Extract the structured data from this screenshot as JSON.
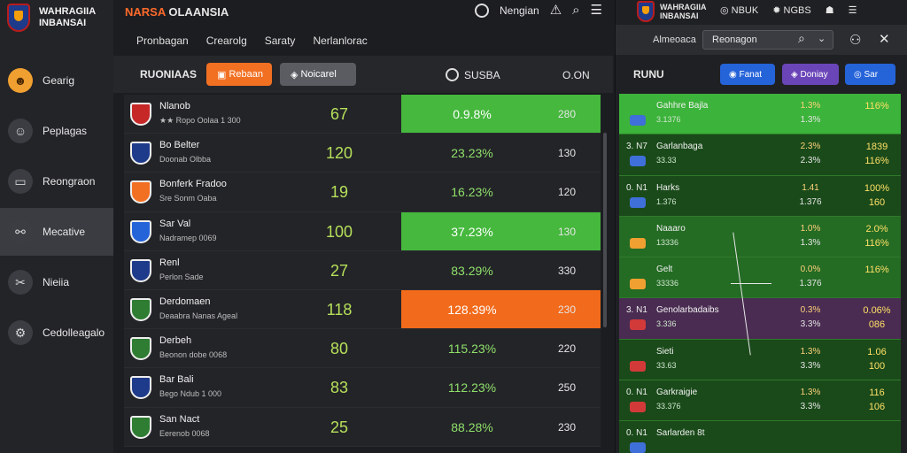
{
  "sidebar": {
    "logo_line1": "WAHRAGIIA",
    "logo_line2": "INBANSAI",
    "items": [
      {
        "label": "Gearig",
        "icon": "user-icon",
        "glyph": "☻"
      },
      {
        "label": "Peplagas",
        "icon": "people-icon",
        "glyph": "☺"
      },
      {
        "label": "Reongraon",
        "icon": "window-icon",
        "glyph": "▭"
      },
      {
        "label": "Mecative",
        "icon": "share-icon",
        "glyph": "⚯"
      },
      {
        "label": "Nieiia",
        "icon": "tools-icon",
        "glyph": "✂"
      },
      {
        "label": "Cedolleagalo",
        "icon": "settings-icon",
        "glyph": "⚙"
      }
    ]
  },
  "header": {
    "brand": "NARSA",
    "title": "OLAANSIA",
    "user_label": "Nengian"
  },
  "subnav": [
    "Pronbagan",
    "Crearolg",
    "Saraty",
    "Nerlanlorac"
  ],
  "table": {
    "title": "RUONIAAS",
    "filter_orange": "Rebaan",
    "filter_grey": "Noicarel",
    "score_col": "SUSBA",
    "right_col": "O.ON",
    "rows": [
      {
        "name": "Nlanob",
        "sub": "★★ Ropo Oolaa 1 300",
        "value": "67",
        "pct": "0.9.8%",
        "right": "280",
        "hl": "green",
        "badge": "#c62828"
      },
      {
        "name": "Bo Belter",
        "sub": "Doonab Olbba",
        "value": "120",
        "pct": "23.23%",
        "right": "130",
        "hl": "",
        "badge": "#1e3a8a"
      },
      {
        "name": "Bonferk Fradoo",
        "sub": "Sre Sonm Oaba",
        "value": "19",
        "pct": "16.23%",
        "right": "120",
        "hl": "",
        "badge": "#f27022"
      },
      {
        "name": "Sar Val",
        "sub": "Nadramep 0069",
        "value": "100",
        "pct": "37.23%",
        "right": "130",
        "hl": "green",
        "badge": "#2563d9"
      },
      {
        "name": "Renl",
        "sub": "Perlon Sade",
        "value": "27",
        "pct": "83.29%",
        "right": "330",
        "hl": "",
        "badge": "#1e3a8a"
      },
      {
        "name": "Derdomaen",
        "sub": "Deaabra Nanas Ageal",
        "value": "118",
        "pct": "128.39%",
        "right": "230",
        "hl": "orange",
        "badge": "#2e7d32"
      },
      {
        "name": "Derbeh",
        "sub": "Beonon dobe 0068",
        "value": "80",
        "pct": "115.23%",
        "right": "220",
        "hl": "",
        "badge": "#2e7d32"
      },
      {
        "name": "Bar Bali",
        "sub": "Bego Ndub 1 000",
        "value": "83",
        "pct": "112.23%",
        "right": "250",
        "hl": "",
        "badge": "#1e3a8a"
      },
      {
        "name": "San Nact",
        "sub": "Eerenob 0068",
        "value": "25",
        "pct": "88.28%",
        "right": "230",
        "hl": "",
        "badge": "#2e7d32"
      }
    ]
  },
  "right_panel": {
    "logo_line1": "WAHRAGIIA",
    "logo_line2": "INBANSAI",
    "top_item1": "NBUK",
    "top_item2": "NGBS",
    "search_label": "Almeoaca",
    "search_value": "Reonagon",
    "title": "RUNU",
    "pill1": "Fanat",
    "pill2": "Doniay",
    "pill3": "Sar",
    "rows": [
      {
        "code": "",
        "name": "Gahhre Bajla",
        "sub": "3.1376",
        "a": "1.3%",
        "b": "1.3%",
        "c": "116%",
        "d": "",
        "tone": "bright",
        "icon": ""
      },
      {
        "code": "3. N7",
        "name": "Garlanbaga",
        "sub": "33.33",
        "a": "2.3%",
        "b": "2.3%",
        "c": "1839",
        "d": "116%",
        "tone": "dark",
        "icon": ""
      },
      {
        "code": "0. N1",
        "name": "Harks",
        "sub": "1.376",
        "a": "1.41",
        "b": "1.376",
        "c": "100%",
        "d": "160",
        "tone": "dark",
        "icon": ""
      },
      {
        "code": "",
        "name": "Naaaro",
        "sub": "13336",
        "a": "1.0%",
        "b": "1.3%",
        "c": "2.0%",
        "d": "116%",
        "tone": "mid",
        "icon": "orange"
      },
      {
        "code": "",
        "name": "Gelt",
        "sub": "33336",
        "a": "0.0%",
        "b": "1.376",
        "c": "116%",
        "d": "",
        "tone": "mid",
        "icon": "orange"
      },
      {
        "code": "3. N1",
        "name": "Genolarbadaibs",
        "sub": "3.336",
        "a": "0.3%",
        "b": "3.3%",
        "c": "0.06%",
        "d": "086",
        "tone": "purple",
        "icon": "red"
      },
      {
        "code": "",
        "name": "Sieti",
        "sub": "33.63",
        "a": "1.3%",
        "b": "3.3%",
        "c": "1.06",
        "d": "100",
        "tone": "dark",
        "icon": "red"
      },
      {
        "code": "0. N1",
        "name": "Garkraigie",
        "sub": "33.376",
        "a": "1.3%",
        "b": "3.3%",
        "c": "116",
        "d": "106",
        "tone": "dark",
        "icon": "red"
      },
      {
        "code": "0. N1",
        "name": "Sarlarden 8t",
        "sub": "",
        "a": "",
        "b": "",
        "c": "",
        "d": "",
        "tone": "dark",
        "icon": ""
      }
    ]
  }
}
